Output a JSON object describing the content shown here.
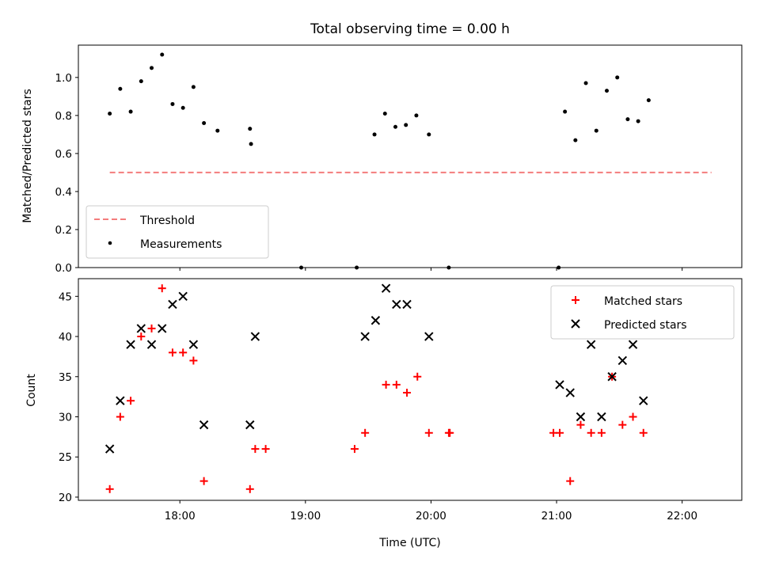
{
  "figure": {
    "title": "Total observing time = 0.00 h",
    "xlabel": "Time (UTC)"
  },
  "colors": {
    "threshold": "#f47c7c",
    "measurements": "#000000",
    "matched": "#ff0000",
    "predicted": "#000000"
  },
  "chart_data": [
    {
      "type": "scatter",
      "panel": "top",
      "title": "Total observing time = 0.00 h",
      "xlabel": "",
      "ylabel": "Matched/Predicted stars",
      "x_axis": "time",
      "x_ticks": [
        "18:00",
        "19:00",
        "20:00",
        "21:00",
        "22:00"
      ],
      "x_tick_minutes": [
        1080,
        1140,
        1200,
        1260,
        1320
      ],
      "xlim_minutes": [
        1031.5,
        1348.5
      ],
      "ylim": [
        0.0,
        1.17
      ],
      "y_ticks": [
        0.0,
        0.2,
        0.4,
        0.6,
        0.8,
        1.0
      ],
      "y_tick_labels": [
        "0.0",
        "0.2",
        "0.4",
        "0.6",
        "0.8",
        "1.0"
      ],
      "legend_position": "lower-left",
      "series": [
        {
          "name": "Threshold",
          "style": "dashed-line",
          "x_minutes": [
            1046.5,
            1334.0
          ],
          "y": [
            0.5,
            0.5
          ]
        },
        {
          "name": "Measurements",
          "style": "dot",
          "x_minutes": [
            1046.5,
            1051.5,
            1056.5,
            1061.5,
            1066.5,
            1071.5,
            1076.5,
            1081.5,
            1086.5,
            1091.5,
            1098.0,
            1113.5,
            1114.0,
            1138.0,
            1164.5,
            1173.0,
            1178.0,
            1183.0,
            1188.0,
            1193.0,
            1199.0,
            1208.5,
            1261.0,
            1264.0,
            1269.0,
            1274.0,
            1279.0,
            1284.0,
            1289.0,
            1294.0,
            1299.0,
            1304.0
          ],
          "y": [
            0.81,
            0.94,
            0.82,
            0.98,
            1.05,
            1.12,
            0.86,
            0.84,
            0.95,
            0.76,
            0.72,
            0.73,
            0.65,
            0.0,
            0.0,
            0.7,
            0.81,
            0.74,
            0.75,
            0.8,
            0.7,
            0.0,
            0.0,
            0.82,
            0.67,
            0.97,
            0.72,
            0.93,
            1.0,
            0.78,
            0.77,
            0.88
          ]
        }
      ]
    },
    {
      "type": "scatter",
      "panel": "bottom",
      "xlabel": "Time (UTC)",
      "ylabel": "Count",
      "x_axis": "time",
      "x_ticks": [
        "18:00",
        "19:00",
        "20:00",
        "21:00",
        "22:00"
      ],
      "x_tick_minutes": [
        1080,
        1140,
        1200,
        1260,
        1320
      ],
      "xlim_minutes": [
        1031.5,
        1348.5
      ],
      "ylim": [
        19.6,
        47.2
      ],
      "y_ticks": [
        20,
        25,
        30,
        35,
        40,
        45
      ],
      "y_tick_labels": [
        "20",
        "25",
        "30",
        "35",
        "40",
        "45"
      ],
      "legend_position": "upper-right",
      "series": [
        {
          "name": "Matched stars",
          "marker": "plus",
          "x_minutes": [
            1046.5,
            1051.5,
            1056.5,
            1061.5,
            1066.5,
            1071.5,
            1076.5,
            1081.5,
            1086.5,
            1091.5,
            1113.5,
            1116.0,
            1121.0,
            1163.5,
            1168.5,
            1178.5,
            1183.5,
            1188.5,
            1193.5,
            1199.0,
            1208.5,
            1209.0,
            1258.5,
            1261.5,
            1266.5,
            1271.5,
            1276.5,
            1281.5,
            1286.5,
            1291.5,
            1296.5,
            1301.5
          ],
          "y": [
            21,
            30,
            32,
            40,
            41,
            46,
            38,
            38,
            37,
            22,
            21,
            26,
            26,
            26,
            28,
            34,
            34,
            33,
            35,
            28,
            28,
            28,
            28,
            28,
            22,
            29,
            28,
            28,
            35,
            29,
            30,
            28
          ]
        },
        {
          "name": "Predicted stars",
          "marker": "x",
          "x_minutes": [
            1046.5,
            1051.5,
            1056.5,
            1061.5,
            1066.5,
            1071.5,
            1076.5,
            1081.5,
            1086.5,
            1091.5,
            1113.5,
            1116.0,
            1168.5,
            1173.5,
            1178.5,
            1183.5,
            1188.5,
            1199.0,
            1261.5,
            1266.5,
            1271.5,
            1276.5,
            1281.5,
            1286.5,
            1291.5,
            1296.5,
            1301.5
          ],
          "y": [
            26,
            32,
            39,
            41,
            39,
            41,
            44,
            45,
            39,
            29,
            29,
            40,
            40,
            42,
            46,
            44,
            44,
            40,
            34,
            33,
            30,
            39,
            30,
            35,
            37,
            39,
            32
          ]
        }
      ]
    }
  ]
}
